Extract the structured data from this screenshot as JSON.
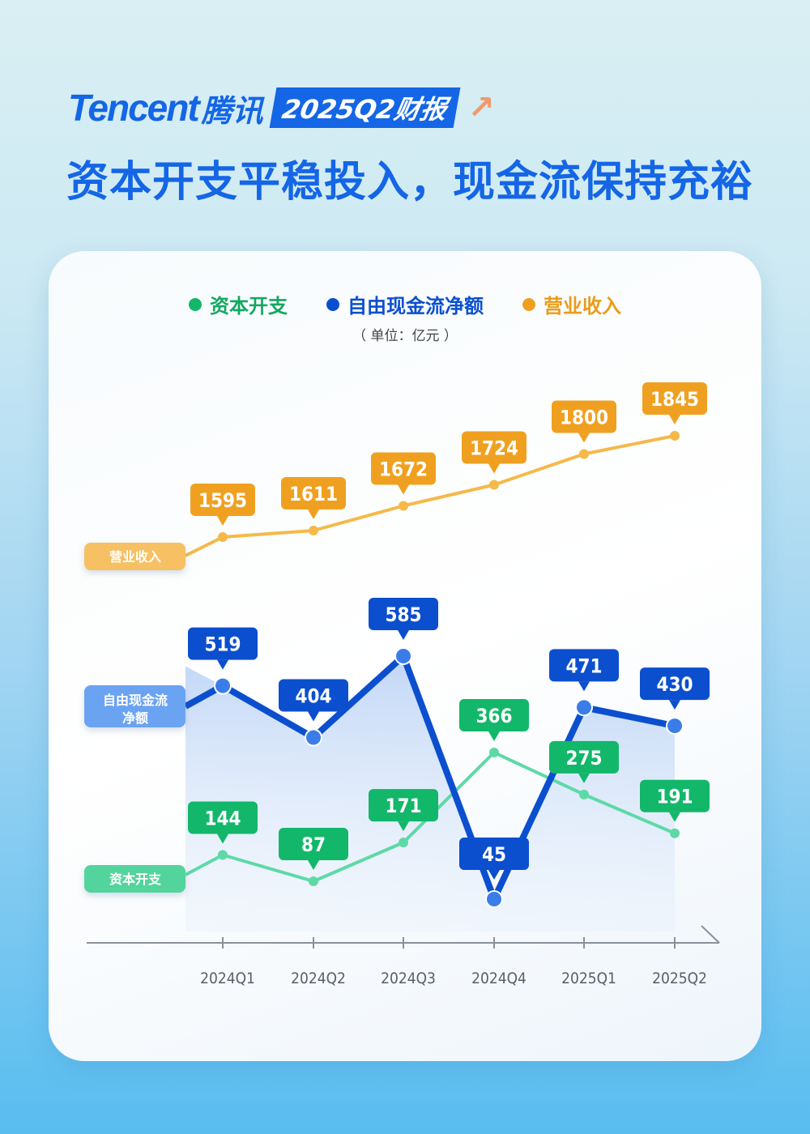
{
  "header": {
    "brand_en": "Tencent",
    "brand_cn": "腾讯",
    "report_tag": "2025Q2财报",
    "arrow": "↗"
  },
  "title": "资本开支平稳投入，现金流保持充裕",
  "legend": [
    {
      "label": "资本开支",
      "color": "#12b76a"
    },
    {
      "label": "自由现金流净额",
      "color": "#0b4fcf"
    },
    {
      "label": "营业收入",
      "color": "#f0a020"
    }
  ],
  "unit": "（ 单位：亿元 ）",
  "series_labels": {
    "revenue": "营业收入",
    "fcf_line1": "自由现金流",
    "fcf_line2": "净额",
    "capex": "资本开支"
  },
  "chart_data": {
    "type": "line",
    "title": "资本开支平稳投入，现金流保持充裕",
    "xlabel": "",
    "ylabel": "单位：亿元",
    "categories": [
      "2024Q1",
      "2024Q2",
      "2024Q3",
      "2024Q4",
      "2025Q1",
      "2025Q2"
    ],
    "series": [
      {
        "name": "资本开支",
        "color": "#12b76a",
        "line_color": "#5ed9a6",
        "values": [
          144,
          87,
          171,
          366,
          275,
          191
        ]
      },
      {
        "name": "自由现金流净额",
        "color": "#0b4fcf",
        "line_color": "#0b4fcf",
        "values": [
          519,
          404,
          585,
          45,
          471,
          430
        ]
      },
      {
        "name": "营业收入",
        "color": "#f0a020",
        "line_color": "#f5b94a",
        "values": [
          1595,
          1611,
          1672,
          1724,
          1800,
          1845
        ]
      }
    ],
    "legend_position": "top",
    "grid": false
  }
}
